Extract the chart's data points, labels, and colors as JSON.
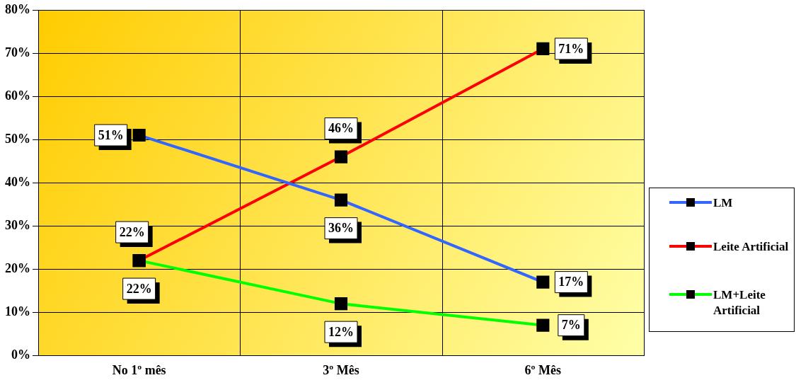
{
  "chart_data": {
    "type": "line",
    "categories": [
      "No 1º mês",
      "3º Mês",
      "6º Mês"
    ],
    "series": [
      {
        "name": "LM",
        "color": "#3366ff",
        "values": [
          51,
          36,
          17
        ],
        "value_labels": [
          "51%",
          "36%",
          "17%"
        ]
      },
      {
        "name": "Leite Artificial",
        "color": "#ff0000",
        "values": [
          22,
          46,
          71
        ],
        "value_labels": [
          "22%",
          "46%",
          "71%"
        ]
      },
      {
        "name": "LM+Leite Artificial",
        "color": "#00ff00",
        "values": [
          22,
          12,
          7
        ],
        "value_labels": [
          "22%",
          "12%",
          "7%"
        ]
      }
    ],
    "ylim": [
      0,
      80
    ],
    "yticks": [
      {
        "value": 0,
        "label": "0%"
      },
      {
        "value": 10,
        "label": "10%"
      },
      {
        "value": 20,
        "label": "20%"
      },
      {
        "value": 30,
        "label": "30%"
      },
      {
        "value": 40,
        "label": "40%"
      },
      {
        "value": 50,
        "label": "50%"
      },
      {
        "value": 60,
        "label": "60%"
      },
      {
        "value": 70,
        "label": "70%"
      },
      {
        "value": 80,
        "label": "80%"
      }
    ],
    "grid": true,
    "legend": "right",
    "marker": "square",
    "line_style": "solid"
  }
}
